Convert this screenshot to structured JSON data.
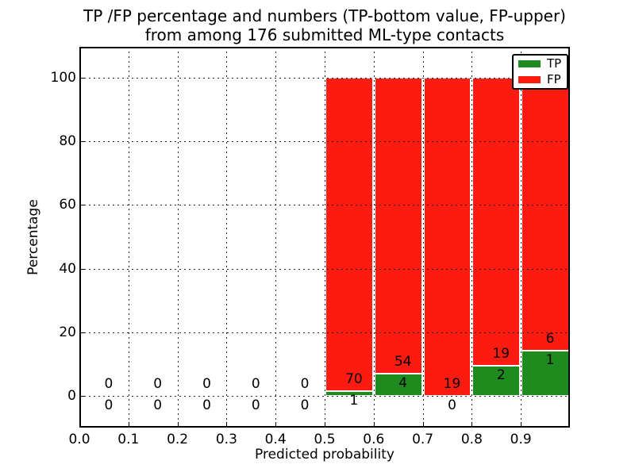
{
  "chart_data": {
    "type": "bar",
    "stacked": true,
    "title": "TP /FP percentage and numbers (TP-bottom value, FP-upper)",
    "subtitle": "from among 176 submitted ML-type contacts",
    "xlabel": "Predicted probability",
    "ylabel": "Percentage",
    "xlim": [
      0.0,
      1.0
    ],
    "ylim": [
      -10,
      110
    ],
    "xticks": [
      0.0,
      0.1,
      0.2,
      0.3,
      0.4,
      0.5,
      0.6,
      0.7,
      0.8,
      0.9
    ],
    "xtick_labels": [
      "0.0",
      "0.1",
      "0.2",
      "0.3",
      "0.4",
      "0.5",
      "0.6",
      "0.7",
      "0.8",
      "0.9"
    ],
    "yticks": [
      0,
      20,
      40,
      60,
      80,
      100
    ],
    "ytick_labels": [
      "0",
      "20",
      "40",
      "60",
      "80",
      "100"
    ],
    "grid": true,
    "bin_width": 0.1,
    "bin_starts": [
      0.0,
      0.1,
      0.2,
      0.3,
      0.4,
      0.5,
      0.6,
      0.7,
      0.8,
      0.9
    ],
    "series": [
      {
        "name": "TP",
        "color": "#1e8b1e",
        "counts": [
          0,
          0,
          0,
          0,
          0,
          1,
          4,
          0,
          2,
          1
        ],
        "percentages": [
          0,
          0,
          0,
          0,
          0,
          1.41,
          6.9,
          0,
          9.52,
          14.29
        ]
      },
      {
        "name": "FP",
        "color": "#fb1b11",
        "counts": [
          0,
          0,
          0,
          0,
          0,
          70,
          54,
          19,
          19,
          6
        ],
        "percentages": [
          0,
          0,
          0,
          0,
          0,
          98.59,
          93.1,
          100,
          90.48,
          85.71
        ]
      }
    ],
    "legend": {
      "position": "upper right",
      "entries": [
        "TP",
        "FP"
      ]
    }
  }
}
